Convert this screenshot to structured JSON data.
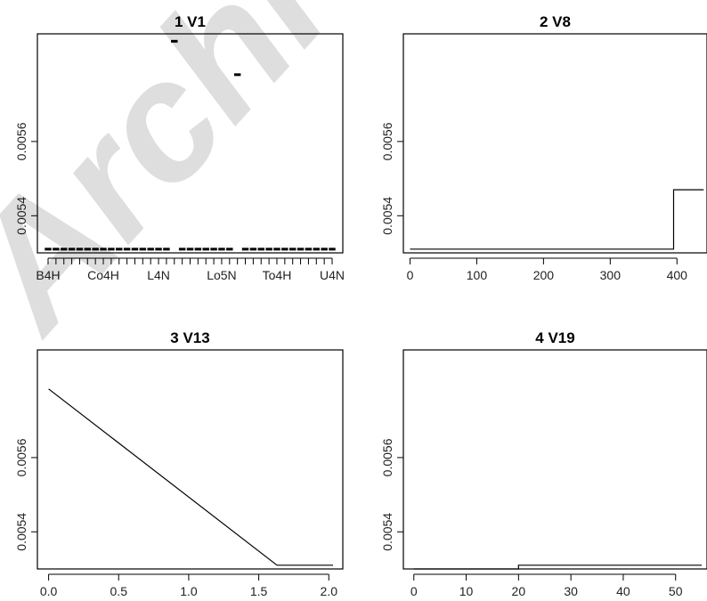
{
  "watermark": "Archive",
  "chart_data": [
    {
      "type": "line",
      "variant": "factor-segments",
      "title": "1  V1",
      "ylim": [
        0.0053,
        0.00589
      ],
      "yticks": [
        {
          "v": 0.0054,
          "label": "0.0054"
        },
        {
          "v": 0.0056,
          "label": "0.0056"
        }
      ],
      "xlabels": [
        "B4H",
        "Co4H",
        "L4N",
        "Lo5N",
        "To4H",
        "U4N"
      ],
      "levels": 37,
      "values": [
        0.00531,
        0.00531,
        0.00531,
        0.00531,
        0.00531,
        0.00531,
        0.00531,
        0.00531,
        0.00531,
        0.00531,
        0.00531,
        0.00531,
        0.00531,
        0.00531,
        0.00531,
        0.00531,
        0.00587,
        0.00531,
        0.00531,
        0.00531,
        0.00531,
        0.00531,
        0.00531,
        0.00531,
        0.00578,
        0.00531,
        0.00531,
        0.00531,
        0.00531,
        0.00531,
        0.00531,
        0.00531,
        0.00531,
        0.00531,
        0.00531,
        0.00531,
        0.00531
      ]
    },
    {
      "type": "line",
      "variant": "step",
      "title": "2  V8",
      "xlim": [
        -10,
        445
      ],
      "ylim": [
        0.0053,
        0.00589
      ],
      "xticks": [
        0,
        100,
        200,
        300,
        400
      ],
      "yticks": [
        {
          "v": 0.0054,
          "label": "0.0054"
        },
        {
          "v": 0.0056,
          "label": "0.0056"
        }
      ],
      "x": [
        0,
        395,
        395,
        440
      ],
      "y": [
        0.00531,
        0.00531,
        0.00547,
        0.00547
      ]
    },
    {
      "type": "line",
      "title": "3  V13",
      "xlim": [
        -0.08,
        2.1
      ],
      "ylim": [
        0.0053,
        0.00589
      ],
      "xticks": [
        {
          "v": 0.0,
          "label": "0.0"
        },
        {
          "v": 0.5,
          "label": "0.5"
        },
        {
          "v": 1.0,
          "label": "1.0"
        },
        {
          "v": 1.5,
          "label": "1.5"
        },
        {
          "v": 2.0,
          "label": "2.0"
        }
      ],
      "yticks": [
        {
          "v": 0.0054,
          "label": "0.0054"
        },
        {
          "v": 0.0056,
          "label": "0.0056"
        }
      ],
      "x": [
        0.0,
        1.63,
        2.03
      ],
      "y": [
        0.005785,
        0.00531,
        0.00531
      ]
    },
    {
      "type": "line",
      "variant": "step",
      "title": "4  V19",
      "xlim": [
        -2,
        56
      ],
      "ylim": [
        0.0053,
        0.00589
      ],
      "xticks": [
        0,
        10,
        20,
        30,
        40,
        50
      ],
      "yticks": [
        {
          "v": 0.0054,
          "label": "0.0054"
        },
        {
          "v": 0.0056,
          "label": "0.0056"
        }
      ],
      "x": [
        0,
        20,
        20,
        55
      ],
      "y": [
        0.0053,
        0.0053,
        0.00531,
        0.00531
      ]
    }
  ]
}
